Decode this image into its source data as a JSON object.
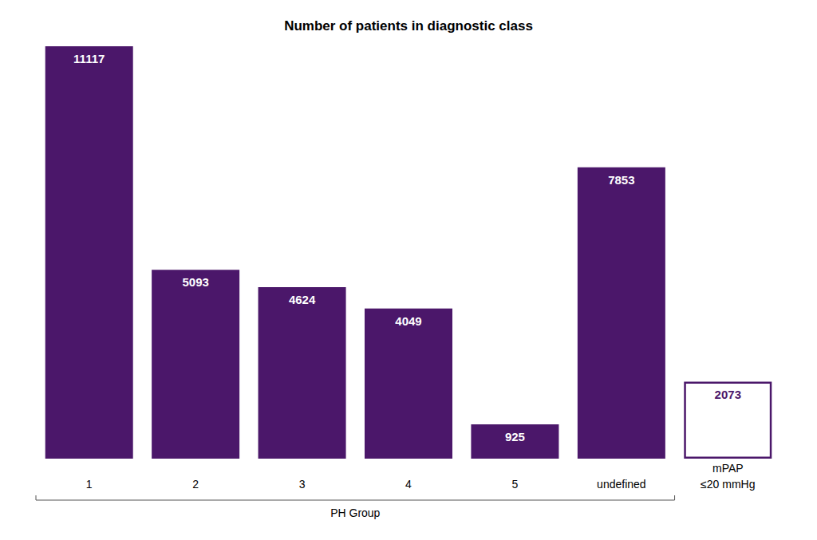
{
  "chart_data": {
    "type": "bar",
    "title": "Number of patients in diagnostic class",
    "categories": [
      "1",
      "2",
      "3",
      "4",
      "5",
      "undefined",
      "mPAP\n≤20 mmHg"
    ],
    "series": [
      {
        "color": "#4b176a",
        "marker": "filled",
        "values": [
          11117,
          5093,
          4624,
          4049,
          925,
          7853,
          null
        ]
      },
      {
        "color": "#4b176a",
        "marker": "hollow",
        "values": [
          null,
          null,
          null,
          null,
          null,
          null,
          2073
        ]
      }
    ],
    "ylim": [
      0,
      11117
    ],
    "yticks": [],
    "grid": false,
    "data_labels": true,
    "tick_labels": "x",
    "annotations": [
      {
        "text": "PH Group",
        "categories": [
          "1",
          "2",
          "3",
          "4",
          "5",
          "undefined"
        ]
      }
    ]
  }
}
